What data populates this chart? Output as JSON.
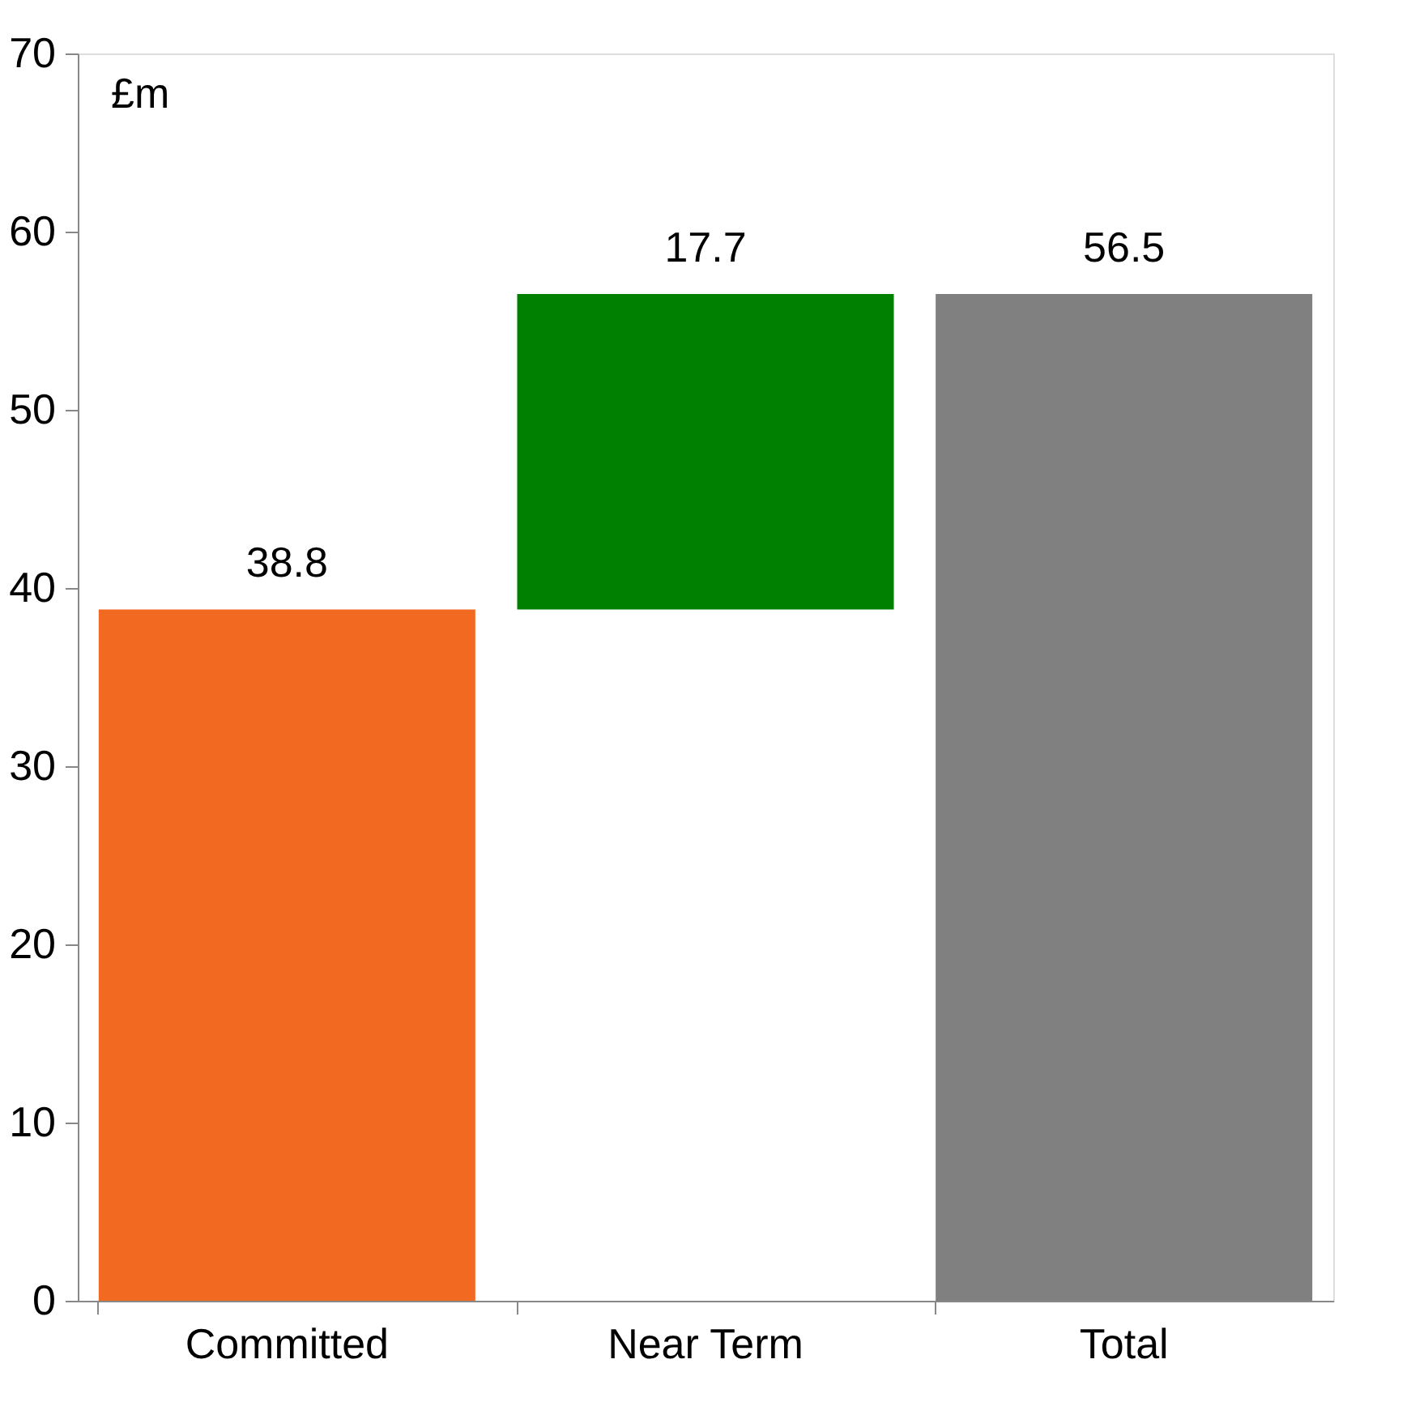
{
  "chart_data": {
    "type": "bar",
    "ylabel": "£m",
    "categories": [
      "Committed",
      "Near Term",
      "Total"
    ],
    "values": [
      38.8,
      17.7,
      56.5
    ],
    "base": [
      0,
      38.8,
      0
    ],
    "colors": [
      "#f26a22",
      "#008000",
      "#808080"
    ],
    "ylim": [
      0,
      70
    ],
    "yticks": [
      0,
      10,
      20,
      30,
      40,
      50,
      60,
      70
    ],
    "grid": false,
    "data_labels": true
  }
}
